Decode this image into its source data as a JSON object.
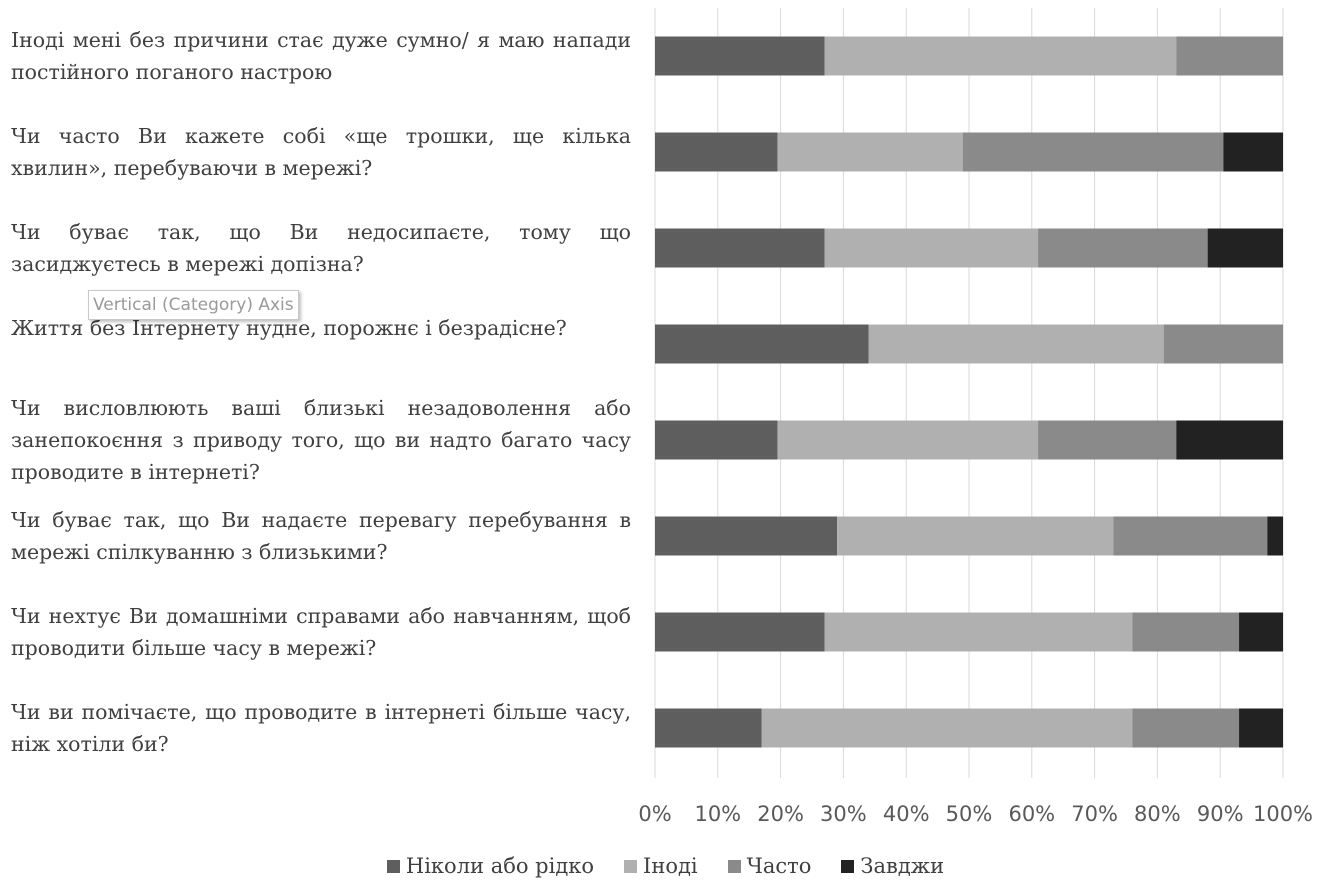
{
  "chart_data": {
    "type": "bar",
    "orientation": "horizontal",
    "stacked": "percent",
    "categories": [
      "Іноді мені без причини стає дуже сумно/ я маю напади постійного поганого настрою",
      "Чи часто Ви кажете собі «ще трошки, ще кілька хвилин», перебуваючи в мережі?",
      "Чи буває так, що Ви недосипаєте, тому що засиджуєтесь в мережі допізна?",
      "Життя без Інтернету нудне, порожнє і безрадісне?",
      "Чи висловлюють ваші близькі незадоволення або занепокоєння з приводу того, що ви надто багато часу проводите в інтернеті?",
      "Чи буває так, що Ви надаєте перевагу перебування в мережі спілкуванню з близькими?",
      "Чи нехтує Ви домашніми справами або навчанням, щоб проводити більше часу в мережі?",
      "Чи ви помічаєте, що проводите в інтернеті більше часу, ніж хотіли би?"
    ],
    "series": [
      {
        "name": "Ніколи або рідко",
        "color": "#5e5e5e",
        "values": [
          27,
          19.5,
          27,
          34,
          19.5,
          29,
          27,
          17
        ]
      },
      {
        "name": "Іноді",
        "color": "#b0b0b0",
        "values": [
          56,
          29.5,
          34,
          47,
          41.5,
          44,
          49,
          59
        ]
      },
      {
        "name": "Часто",
        "color": "#8a8a8a",
        "values": [
          17,
          41.5,
          27,
          19,
          22,
          24.5,
          17,
          17
        ]
      },
      {
        "name": "Завджи",
        "color": "#222222",
        "values": [
          0,
          9.5,
          12,
          0,
          17,
          2.5,
          7,
          7
        ]
      }
    ],
    "xlim": [
      0,
      100
    ],
    "x_ticks": [
      "0%",
      "10%",
      "20%",
      "30%",
      "40%",
      "50%",
      "60%",
      "70%",
      "80%",
      "90%",
      "100%"
    ],
    "grid": true,
    "legend": "bottom",
    "xlabel": "",
    "ylabel": ""
  },
  "tooltip": "Vertical (Category) Axis"
}
